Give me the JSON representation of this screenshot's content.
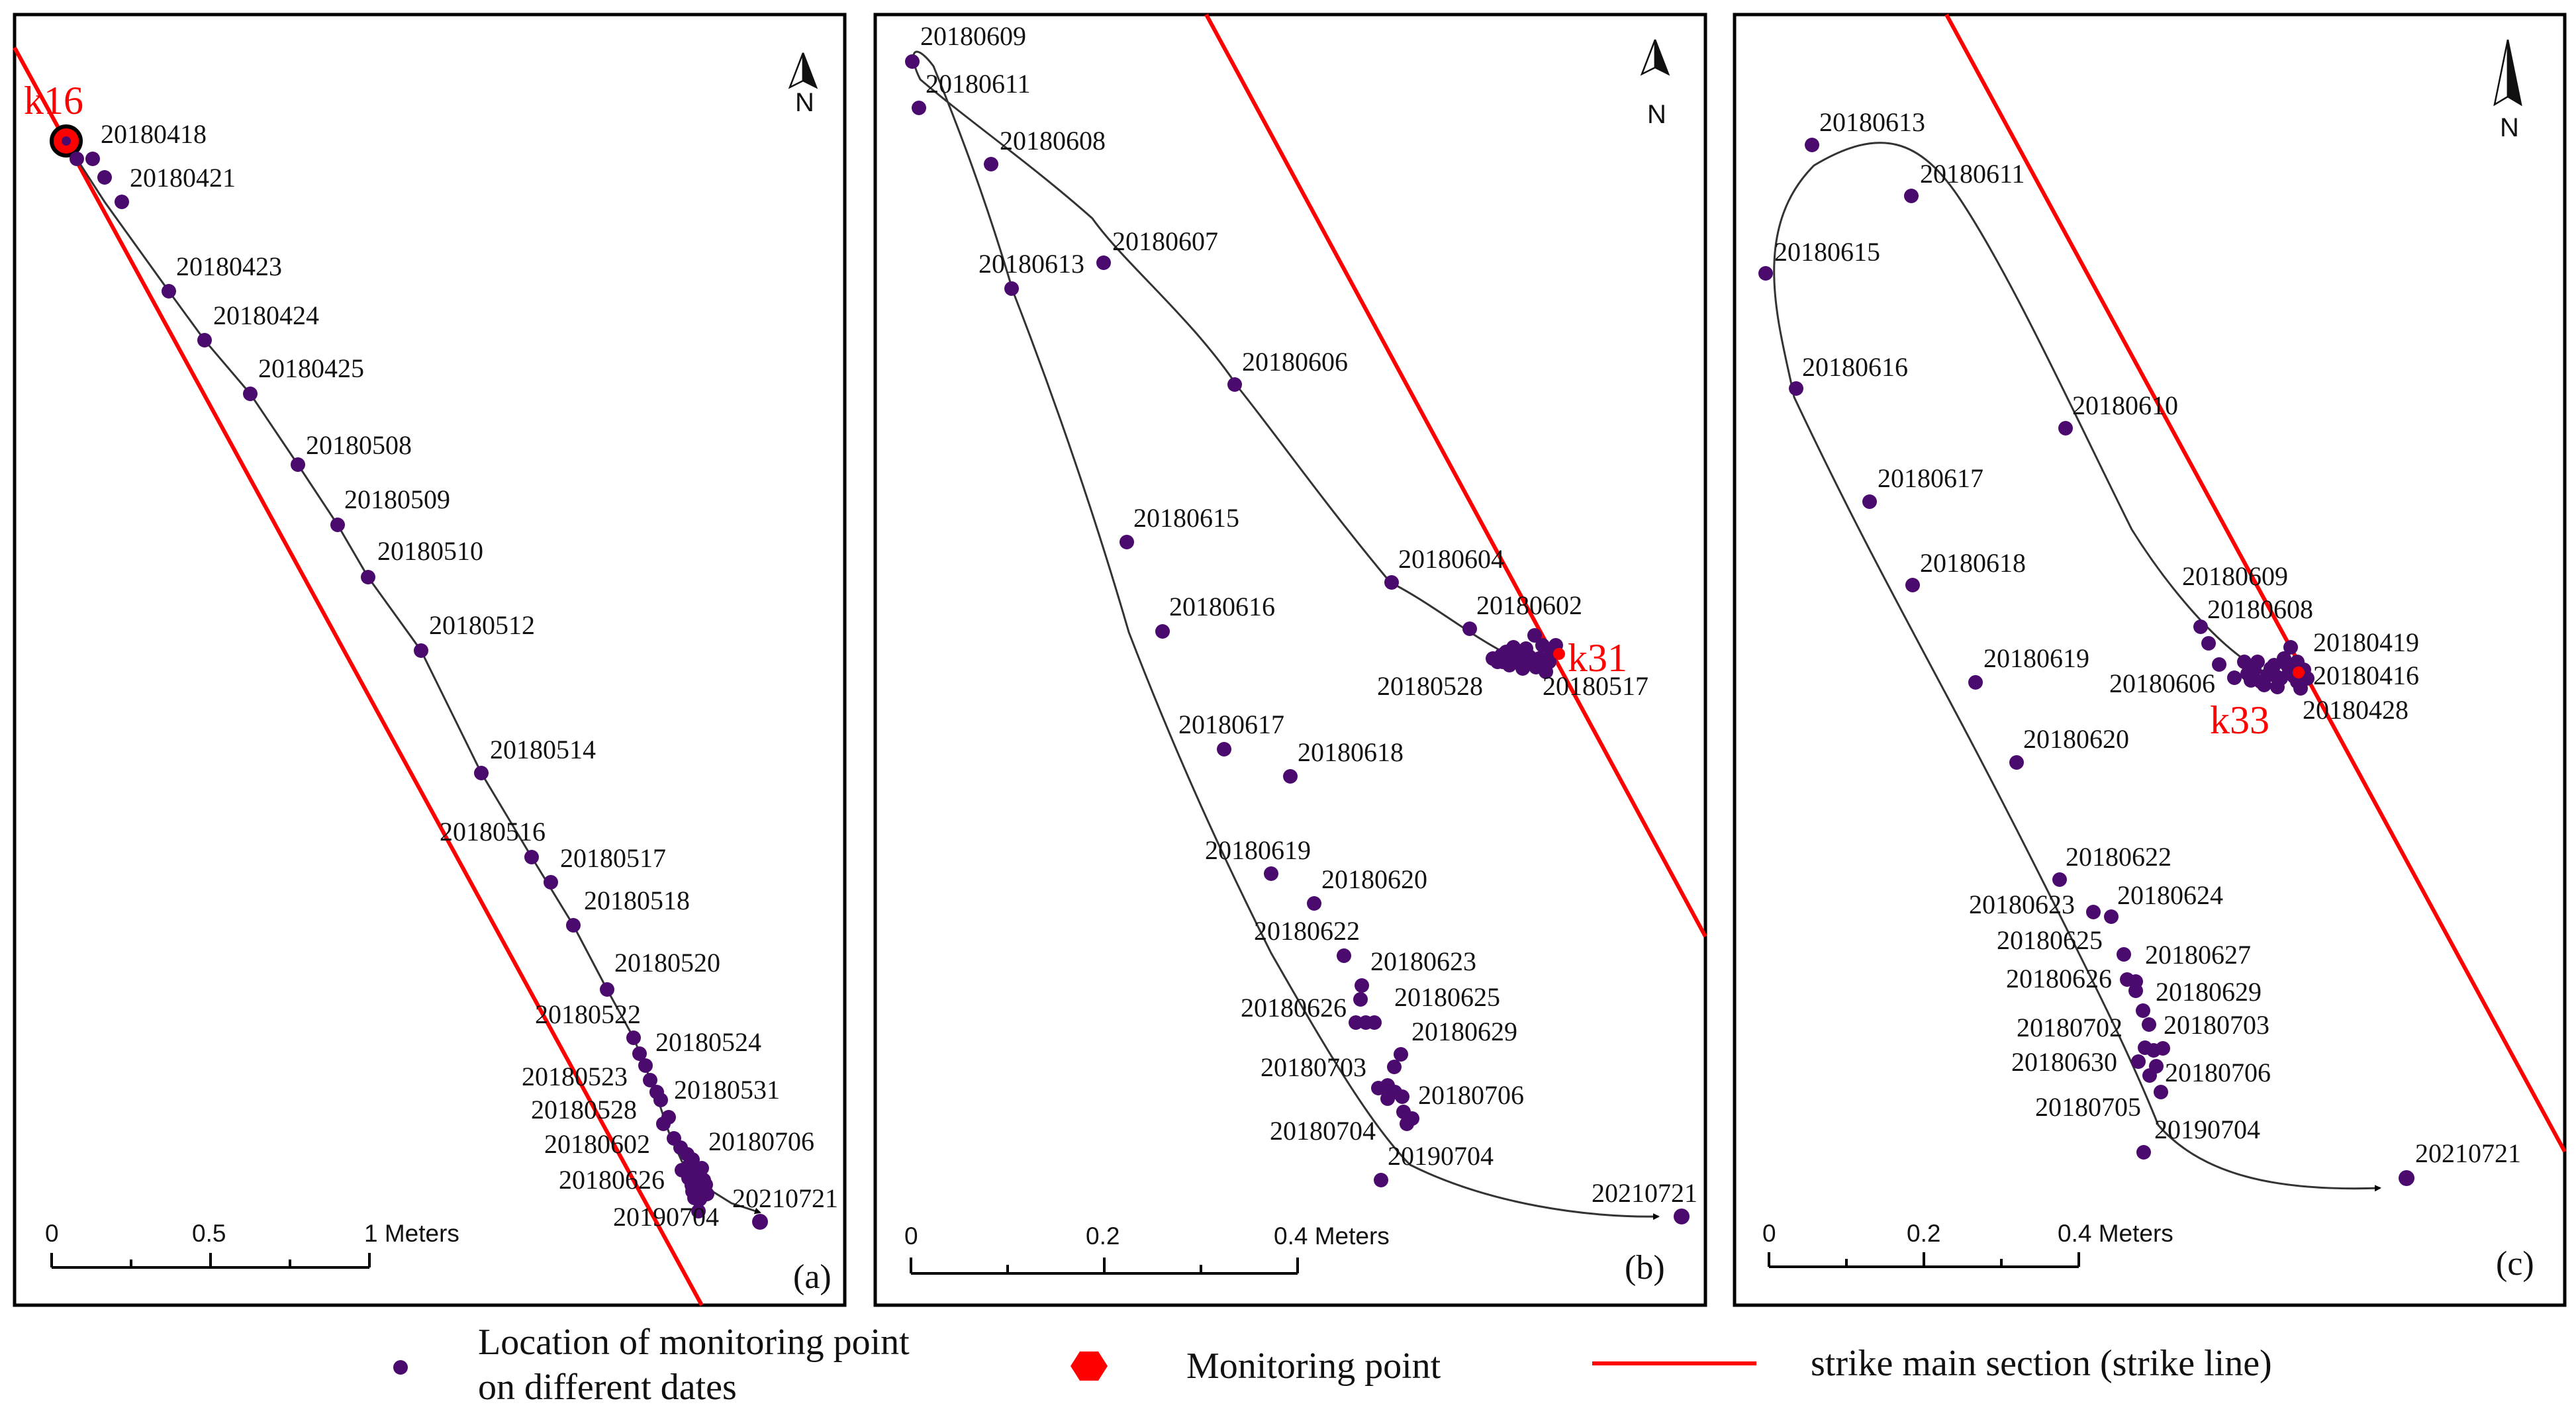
{
  "figure": {
    "panels": [
      {
        "id": "a",
        "letter": "(a)",
        "monitor_point": "k16",
        "north_label": "N",
        "scale": {
          "ticks": [
            "0",
            "0.5",
            "1 Meters"
          ]
        },
        "point_labels": [
          "20180418",
          "20180421",
          "20180423",
          "20180424",
          "20180425",
          "20180508",
          "20180509",
          "20180510",
          "20180512",
          "20180514",
          "20180516",
          "20180517",
          "20180518",
          "20180520",
          "20180522",
          "20180524",
          "20180523",
          "20180531",
          "20180528",
          "20180602",
          "20180706",
          "20180626",
          "20210721",
          "20190704"
        ]
      },
      {
        "id": "b",
        "letter": "(b)",
        "monitor_point": "k31",
        "north_label": "N",
        "scale": {
          "ticks": [
            "0",
            "0.2",
            "0.4 Meters"
          ]
        },
        "point_labels": [
          "20180609",
          "20180611",
          "20180608",
          "20180607",
          "20180613",
          "20180606",
          "20180615",
          "20180604",
          "20180602",
          "20180616",
          "20180528",
          "20180517",
          "20180617",
          "20180618",
          "20180619",
          "20180620",
          "20180622",
          "20180623",
          "20180625",
          "20180626",
          "20180629",
          "20180703",
          "20180706",
          "20180704",
          "20190704",
          "20210721"
        ]
      },
      {
        "id": "c",
        "letter": "(c)",
        "monitor_point": "k33",
        "north_label": "N",
        "scale": {
          "ticks": [
            "0",
            "0.2",
            "0.4 Meters"
          ]
        },
        "point_labels": [
          "20180613",
          "20180611",
          "20180615",
          "20180616",
          "20180610",
          "20180617",
          "20180618",
          "20180609",
          "20180608",
          "20180419",
          "20180606",
          "20180416",
          "20180619",
          "20180428",
          "20180620",
          "20180622",
          "20180623",
          "20180624",
          "20180625",
          "20180627",
          "20180626",
          "20180629",
          "20180702",
          "20180703",
          "20180630",
          "20180706",
          "20180705",
          "20190704",
          "20210721"
        ]
      }
    ]
  },
  "legend": {
    "location_label_line1": "Location of monitoring point",
    "location_label_line2": "on different dates",
    "monitoring_label": "Monitoring point",
    "strike_label": "strike  main section (strike line)"
  },
  "colors": {
    "point": "#4b0a6e",
    "strike_line": "#ff0000",
    "monitor_marker": "#ff0000",
    "path": "#333333",
    "frame": "#000000"
  }
}
